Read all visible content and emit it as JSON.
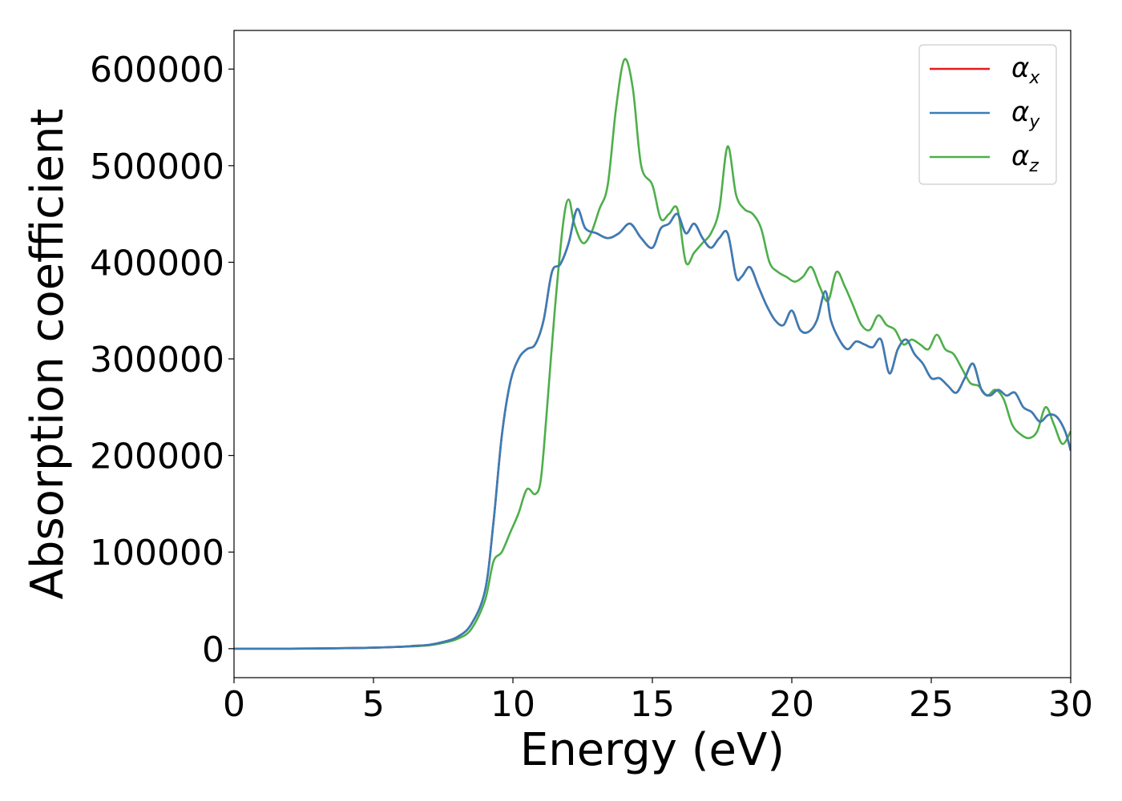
{
  "chart_data": {
    "type": "line",
    "title": "",
    "xlabel": "Energy (eV)",
    "ylabel": "Absorption coefficient",
    "xlim": [
      0,
      30
    ],
    "ylim": [
      -30000,
      640000
    ],
    "xticks": [
      0,
      5,
      10,
      15,
      20,
      25,
      30
    ],
    "yticks": [
      0,
      100000,
      200000,
      300000,
      400000,
      500000,
      600000
    ],
    "grid": false,
    "legend_position": "top-right",
    "series": [
      {
        "name": "αx",
        "symbol": "α",
        "subscript": "x",
        "color": "#e41a1c",
        "x": [
          0,
          2,
          4,
          5,
          6,
          6.5,
          7,
          7.5,
          8,
          8.5,
          9,
          9.3,
          9.6,
          9.9,
          10.2,
          10.5,
          10.8,
          11.1,
          11.4,
          11.7,
          12.0,
          12.3,
          12.6,
          13.0,
          13.4,
          13.8,
          14.2,
          14.6,
          15.0,
          15.3,
          15.6,
          15.9,
          16.2,
          16.5,
          16.8,
          17.1,
          17.4,
          17.7,
          18.0,
          18.2,
          18.5,
          18.8,
          19.1,
          19.4,
          19.7,
          20.0,
          20.3,
          20.6,
          20.9,
          21.2,
          21.4,
          21.7,
          22.0,
          22.3,
          22.6,
          22.9,
          23.2,
          23.5,
          23.8,
          24.1,
          24.4,
          24.7,
          25.0,
          25.3,
          25.6,
          25.9,
          26.2,
          26.5,
          26.8,
          27.1,
          27.4,
          27.7,
          28.0,
          28.3,
          28.6,
          28.9,
          29.2,
          29.5,
          29.8,
          30
        ],
        "y": [
          0,
          0,
          500,
          1000,
          2000,
          3000,
          4000,
          7000,
          12000,
          25000,
          60000,
          130000,
          220000,
          275000,
          300000,
          310000,
          315000,
          340000,
          390000,
          398000,
          420000,
          455000,
          435000,
          430000,
          425000,
          430000,
          440000,
          425000,
          415000,
          435000,
          440000,
          450000,
          430000,
          440000,
          425000,
          415000,
          425000,
          430000,
          385000,
          385000,
          395000,
          375000,
          355000,
          340000,
          335000,
          350000,
          330000,
          328000,
          340000,
          370000,
          340000,
          320000,
          310000,
          318000,
          315000,
          312000,
          320000,
          285000,
          310000,
          320000,
          305000,
          295000,
          280000,
          280000,
          272000,
          265000,
          280000,
          295000,
          268000,
          262000,
          268000,
          262000,
          265000,
          250000,
          245000,
          235000,
          242000,
          240000,
          225000,
          205000
        ]
      },
      {
        "name": "αy",
        "symbol": "α",
        "subscript": "y",
        "color": "#377eb8",
        "x": [
          0,
          2,
          4,
          5,
          6,
          6.5,
          7,
          7.5,
          8,
          8.5,
          9,
          9.3,
          9.6,
          9.9,
          10.2,
          10.5,
          10.8,
          11.1,
          11.4,
          11.7,
          12.0,
          12.3,
          12.6,
          13.0,
          13.4,
          13.8,
          14.2,
          14.6,
          15.0,
          15.3,
          15.6,
          15.9,
          16.2,
          16.5,
          16.8,
          17.1,
          17.4,
          17.7,
          18.0,
          18.2,
          18.5,
          18.8,
          19.1,
          19.4,
          19.7,
          20.0,
          20.3,
          20.6,
          20.9,
          21.2,
          21.4,
          21.7,
          22.0,
          22.3,
          22.6,
          22.9,
          23.2,
          23.5,
          23.8,
          24.1,
          24.4,
          24.7,
          25.0,
          25.3,
          25.6,
          25.9,
          26.2,
          26.5,
          26.8,
          27.1,
          27.4,
          27.7,
          28.0,
          28.3,
          28.6,
          28.9,
          29.2,
          29.5,
          29.8,
          30
        ],
        "y": [
          0,
          0,
          500,
          1000,
          2000,
          3000,
          4000,
          7000,
          12000,
          25000,
          60000,
          130000,
          220000,
          275000,
          300000,
          310000,
          315000,
          340000,
          390000,
          398000,
          420000,
          455000,
          435000,
          430000,
          425000,
          430000,
          440000,
          425000,
          415000,
          435000,
          440000,
          450000,
          430000,
          440000,
          425000,
          415000,
          425000,
          430000,
          385000,
          385000,
          395000,
          375000,
          355000,
          340000,
          335000,
          350000,
          330000,
          328000,
          340000,
          370000,
          340000,
          320000,
          310000,
          318000,
          315000,
          312000,
          320000,
          285000,
          310000,
          320000,
          305000,
          295000,
          280000,
          280000,
          272000,
          265000,
          280000,
          295000,
          268000,
          262000,
          268000,
          262000,
          265000,
          250000,
          245000,
          235000,
          242000,
          240000,
          225000,
          205000
        ]
      },
      {
        "name": "αz",
        "symbol": "α",
        "subscript": "z",
        "color": "#4daf4a",
        "x": [
          0,
          2,
          4,
          5,
          6,
          6.5,
          7,
          7.5,
          8,
          8.5,
          9,
          9.3,
          9.6,
          9.9,
          10.2,
          10.5,
          10.8,
          11.0,
          11.2,
          11.5,
          11.8,
          12.0,
          12.2,
          12.5,
          12.8,
          13.1,
          13.4,
          13.7,
          14.0,
          14.3,
          14.6,
          15.0,
          15.3,
          15.6,
          15.9,
          16.2,
          16.5,
          16.8,
          17.1,
          17.4,
          17.7,
          18.0,
          18.3,
          18.6,
          18.9,
          19.2,
          19.5,
          19.8,
          20.1,
          20.4,
          20.7,
          21.0,
          21.3,
          21.6,
          21.9,
          22.2,
          22.5,
          22.8,
          23.1,
          23.4,
          23.7,
          24.0,
          24.3,
          24.6,
          24.9,
          25.2,
          25.5,
          25.8,
          26.1,
          26.4,
          26.7,
          27.0,
          27.3,
          27.6,
          27.9,
          28.2,
          28.5,
          28.8,
          29.1,
          29.4,
          29.7,
          30
        ],
        "y": [
          0,
          0,
          500,
          1000,
          2000,
          2500,
          3500,
          6000,
          10000,
          20000,
          50000,
          90000,
          100000,
          120000,
          140000,
          165000,
          160000,
          175000,
          240000,
          350000,
          440000,
          465000,
          440000,
          420000,
          430000,
          455000,
          480000,
          560000,
          610000,
          580000,
          500000,
          480000,
          445000,
          450000,
          455000,
          400000,
          410000,
          420000,
          430000,
          455000,
          520000,
          470000,
          455000,
          450000,
          435000,
          400000,
          390000,
          385000,
          380000,
          385000,
          395000,
          375000,
          360000,
          390000,
          375000,
          355000,
          335000,
          330000,
          345000,
          335000,
          330000,
          315000,
          320000,
          315000,
          310000,
          325000,
          310000,
          305000,
          290000,
          275000,
          272000,
          262000,
          268000,
          258000,
          232000,
          222000,
          218000,
          225000,
          250000,
          232000,
          212000,
          225000
        ]
      }
    ]
  }
}
